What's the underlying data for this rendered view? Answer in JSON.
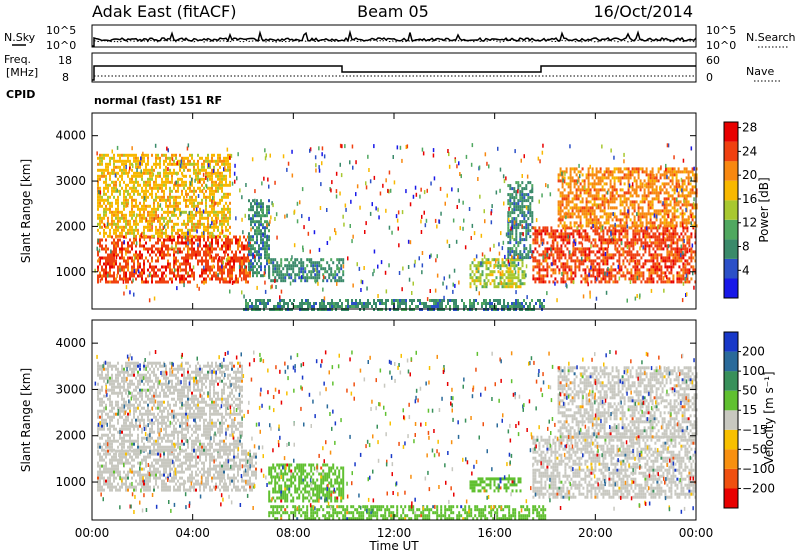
{
  "header": {
    "station": "Adak East (fitACF)",
    "beam": "Beam 05",
    "date": "16/Oct/2014"
  },
  "noise_panel": {
    "left_label": "N.Sky",
    "right_label": "N.Search",
    "ticks": [
      "10^5",
      "10^0"
    ]
  },
  "freq_panel": {
    "left_label_1": "Freq.",
    "left_label_2": "[MHz]",
    "right_label": "Nave",
    "left_ticks": [
      "18",
      "8"
    ],
    "right_ticks": [
      "60",
      "0"
    ]
  },
  "cpid_panel": {
    "label": "CPID",
    "mode": "normal (fast) 151 RF"
  },
  "colors": {
    "noise_line": "#000000",
    "velocity_ground": "#c8c8c0",
    "power_high": "#e80000",
    "power_low": "#1818e0"
  },
  "chart_data": [
    {
      "type": "heatmap",
      "title": "",
      "xlabel": "Time UT",
      "ylabel": "Slant Range [km]",
      "x_ticks": [
        "00:00",
        "04:00",
        "08:00",
        "12:00",
        "16:00",
        "20:00",
        "00:00"
      ],
      "y_ticks": [
        "1000",
        "2000",
        "3000",
        "4000"
      ],
      "xlim_hours": [
        0,
        24
      ],
      "ylim_km": [
        180,
        4500
      ],
      "colorbar": {
        "label": "Power [dB]",
        "ticks": [
          "4",
          "8",
          "12",
          "16",
          "20",
          "24",
          "28"
        ],
        "range": [
          0,
          30
        ],
        "colors": [
          "#1818e8",
          "#2c50c8",
          "#3a8a6a",
          "#50a860",
          "#a8c830",
          "#f8b800",
          "#f88810",
          "#f04010",
          "#e80000"
        ]
      },
      "regions": [
        {
          "t0": 0.2,
          "t1": 6.3,
          "r0": 800,
          "r1": 1800,
          "value": 26
        },
        {
          "t0": 0.2,
          "t1": 5.5,
          "r0": 1800,
          "r1": 3600,
          "value": 19
        },
        {
          "t0": 6.2,
          "t1": 7.0,
          "r0": 900,
          "r1": 2600,
          "value": 8
        },
        {
          "t0": 7.0,
          "t1": 10.0,
          "r0": 800,
          "r1": 1300,
          "value": 7
        },
        {
          "t0": 15.0,
          "t1": 17.2,
          "r0": 700,
          "r1": 1300,
          "value": 14
        },
        {
          "t0": 16.5,
          "t1": 17.5,
          "r0": 1300,
          "r1": 3000,
          "value": 7
        },
        {
          "t0": 17.5,
          "t1": 24.0,
          "r0": 800,
          "r1": 2000,
          "value": 26
        },
        {
          "t0": 18.5,
          "t1": 24.0,
          "r0": 2000,
          "r1": 3300,
          "value": 21
        },
        {
          "t0": 6.0,
          "t1": 18.0,
          "r0": 180,
          "r1": 400,
          "value": 8
        }
      ]
    },
    {
      "type": "heatmap",
      "title": "",
      "xlabel": "Time UT",
      "ylabel": "Slant Range [km]",
      "x_ticks": [
        "00:00",
        "04:00",
        "08:00",
        "12:00",
        "16:00",
        "20:00",
        "00:00"
      ],
      "y_ticks": [
        "1000",
        "2000",
        "3000",
        "4000"
      ],
      "xlim_hours": [
        0,
        24
      ],
      "ylim_km": [
        180,
        4500
      ],
      "colorbar": {
        "label": "Velocity [m s⁻¹]",
        "ticks": [
          "200",
          "100",
          "50",
          "15",
          "−15",
          "−50",
          "−100",
          "−200"
        ],
        "colors": [
          "#1838c8",
          "#2a6a9a",
          "#38905a",
          "#60c030",
          "#c8c8c0",
          "#f8c000",
          "#f89010",
          "#f05010",
          "#e80000"
        ]
      },
      "regions": [
        {
          "t0": 0.2,
          "t1": 6.5,
          "r0": 800,
          "r1": 1700,
          "value": 0
        },
        {
          "t0": 0.2,
          "t1": 6.0,
          "r0": 1700,
          "r1": 3600,
          "value": 0
        },
        {
          "t0": 7.0,
          "t1": 10.0,
          "r0": 600,
          "r1": 1400,
          "value": 30
        },
        {
          "t0": 15.0,
          "t1": 17.0,
          "r0": 800,
          "r1": 1100,
          "value": 30
        },
        {
          "t0": 17.5,
          "t1": 24.0,
          "r0": 700,
          "r1": 2000,
          "value": 0
        },
        {
          "t0": 18.5,
          "t1": 24.0,
          "r0": 2000,
          "r1": 3500,
          "value": 0
        },
        {
          "t0": 7.0,
          "t1": 18.0,
          "r0": 180,
          "r1": 500,
          "value": 30
        }
      ]
    }
  ]
}
